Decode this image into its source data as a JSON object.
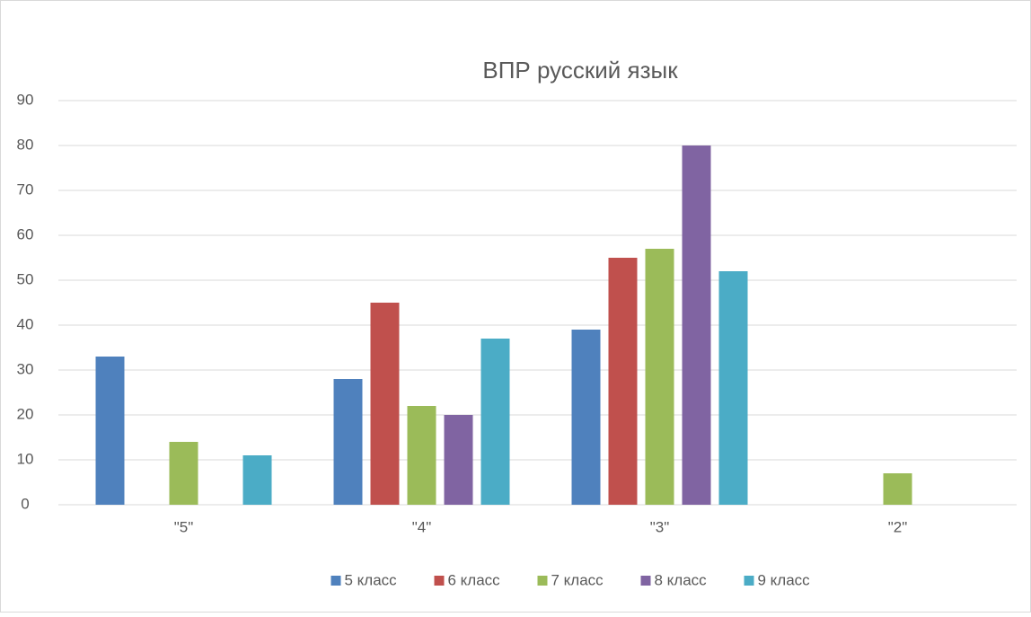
{
  "chart_data": {
    "type": "bar",
    "title": "ВПР русский язык",
    "categories": [
      "\"5\"",
      "\"4\"",
      "\"3\"",
      "\"2\""
    ],
    "series": [
      {
        "name": "5 класс",
        "color": "#4f81bd",
        "values": [
          33,
          28,
          39,
          0
        ]
      },
      {
        "name": "6 класс",
        "color": "#c0504d",
        "values": [
          0,
          45,
          55,
          0
        ]
      },
      {
        "name": "7 класс",
        "color": "#9bbb59",
        "values": [
          14,
          22,
          57,
          7
        ]
      },
      {
        "name": "8 класс",
        "color": "#8064a2",
        "values": [
          0,
          20,
          80,
          0
        ]
      },
      {
        "name": "9 класс",
        "color": "#4bacc6",
        "values": [
          11,
          37,
          52,
          0
        ]
      }
    ],
    "ylim": [
      0,
      90
    ],
    "yticks": [
      0,
      10,
      20,
      30,
      40,
      50,
      60,
      70,
      80,
      90
    ],
    "grid": true,
    "legend": "bottom"
  }
}
